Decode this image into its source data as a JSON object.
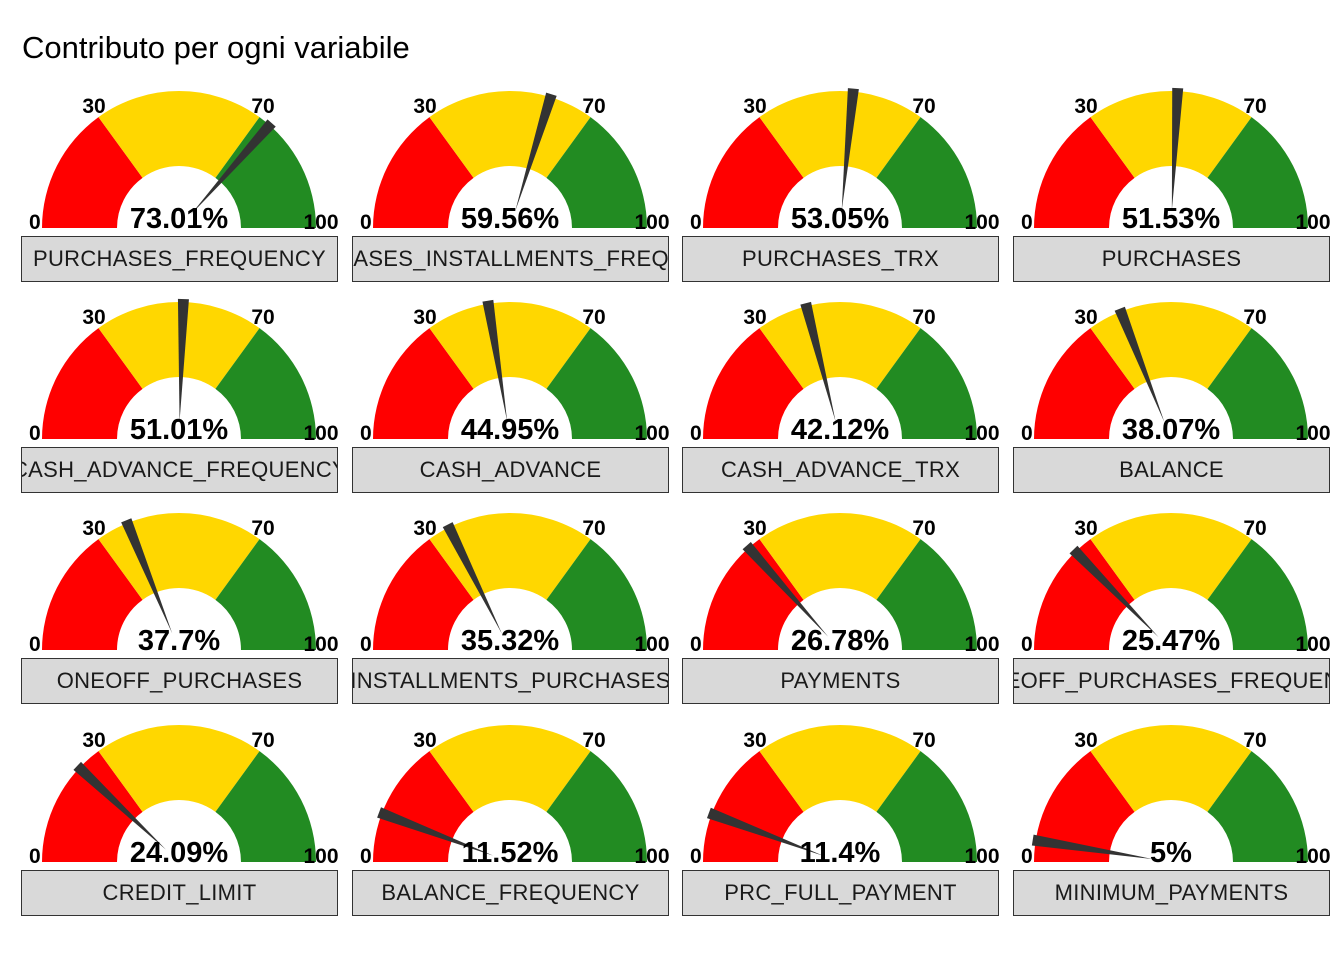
{
  "title": "Contributo per ogni variabile",
  "colors": {
    "low": "#ff0000",
    "mid": "#ffd700",
    "high": "#228b22",
    "needle": "#333333",
    "strip": "#d9d9d9"
  },
  "chart_data": {
    "type": "gauge",
    "title": "Contributo per ogni variabile",
    "range": [
      0,
      100
    ],
    "thresholds": [
      30,
      70
    ],
    "tick_labels": [
      "0",
      "30",
      "70",
      "100"
    ],
    "panels": [
      {
        "variable": "PURCHASES_FREQUENCY",
        "value": 73.01,
        "label": "73.01%"
      },
      {
        "variable": "PURCHASES_INSTALLMENTS_FREQUENCY",
        "value": 59.56,
        "label": "59.56%"
      },
      {
        "variable": "PURCHASES_TRX",
        "value": 53.05,
        "label": "53.05%"
      },
      {
        "variable": "PURCHASES",
        "value": 51.53,
        "label": "51.53%"
      },
      {
        "variable": "CASH_ADVANCE_FREQUENCY",
        "value": 51.01,
        "label": "51.01%"
      },
      {
        "variable": "CASH_ADVANCE",
        "value": 44.95,
        "label": "44.95%"
      },
      {
        "variable": "CASH_ADVANCE_TRX",
        "value": 42.12,
        "label": "42.12%"
      },
      {
        "variable": "BALANCE",
        "value": 38.07,
        "label": "38.07%"
      },
      {
        "variable": "ONEOFF_PURCHASES",
        "value": 37.7,
        "label": "37.7%"
      },
      {
        "variable": "INSTALLMENTS_PURCHASES",
        "value": 35.32,
        "label": "35.32%"
      },
      {
        "variable": "PAYMENTS",
        "value": 26.78,
        "label": "26.78%"
      },
      {
        "variable": "ONEOFF_PURCHASES_FREQUENCY",
        "value": 25.47,
        "label": "25.47%"
      },
      {
        "variable": "CREDIT_LIMIT",
        "value": 24.09,
        "label": "24.09%"
      },
      {
        "variable": "BALANCE_FREQUENCY",
        "value": 11.52,
        "label": "11.52%"
      },
      {
        "variable": "PRC_FULL_PAYMENT",
        "value": 11.4,
        "label": "11.4%"
      },
      {
        "variable": "MINIMUM_PAYMENTS",
        "value": 5,
        "label": "5%"
      }
    ]
  }
}
